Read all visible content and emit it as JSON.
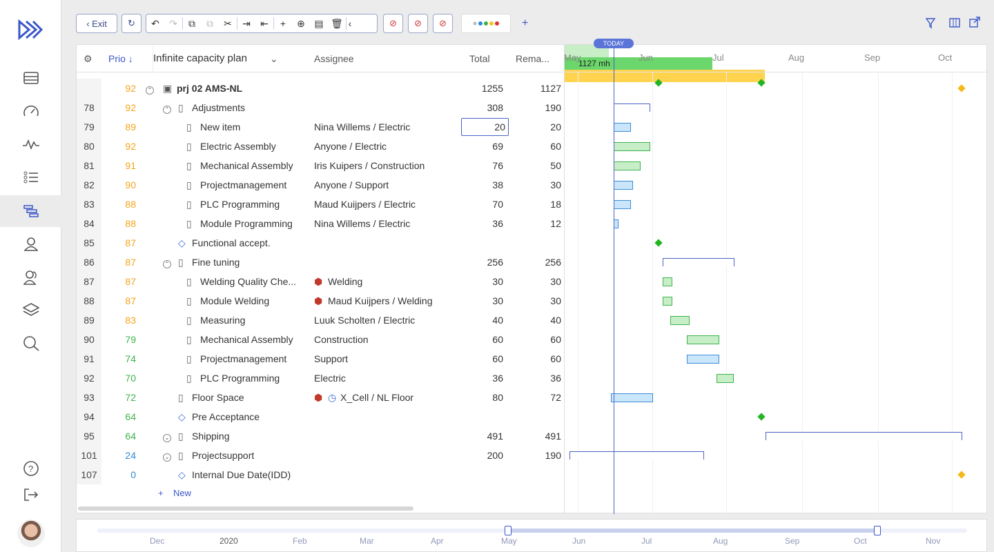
{
  "nav": {
    "exit_label": "Exit",
    "add_label": "+"
  },
  "header": {
    "prio": "Prio",
    "plan": "Infinite capacity plan",
    "assignee": "Assignee",
    "total": "Total",
    "remaining": "Rema..."
  },
  "today_label": "TODAY",
  "months": [
    "May",
    "Jun",
    "Jul",
    "Aug",
    "Sep",
    "Oct"
  ],
  "rows": [
    {
      "id": "",
      "prio": "92",
      "name": "prj 02 AMS-NL",
      "assignee": "",
      "total": "1255",
      "remaining": "1127"
    },
    {
      "id": "78",
      "prio": "92",
      "name": "Adjustments",
      "assignee": "",
      "total": "308",
      "remaining": "190"
    },
    {
      "id": "79",
      "prio": "89",
      "name": "New item",
      "assignee": "Nina Willems / Electric",
      "total": "20",
      "remaining": "20"
    },
    {
      "id": "80",
      "prio": "92",
      "name": "Electric Assembly",
      "assignee": "Anyone / Electric",
      "total": "69",
      "remaining": "60"
    },
    {
      "id": "81",
      "prio": "91",
      "name": "Mechanical Assembly",
      "assignee": "Iris Kuipers / Construction",
      "total": "76",
      "remaining": "50"
    },
    {
      "id": "82",
      "prio": "90",
      "name": "Projectmanagement",
      "assignee": "Anyone / Support",
      "total": "38",
      "remaining": "30"
    },
    {
      "id": "83",
      "prio": "88",
      "name": "PLC Programming",
      "assignee": "Maud Kuijpers / Electric",
      "total": "70",
      "remaining": "18"
    },
    {
      "id": "84",
      "prio": "88",
      "name": "Module Programming",
      "assignee": "Nina Willems / Electric",
      "total": "36",
      "remaining": "12"
    },
    {
      "id": "85",
      "prio": "87",
      "name": "Functional accept.",
      "assignee": "",
      "total": "",
      "remaining": ""
    },
    {
      "id": "86",
      "prio": "87",
      "name": "Fine tuning",
      "assignee": "",
      "total": "256",
      "remaining": "256"
    },
    {
      "id": "87",
      "prio": "87",
      "name": "Welding Quality Che...",
      "assignee": "Welding",
      "total": "30",
      "remaining": "30"
    },
    {
      "id": "88",
      "prio": "87",
      "name": "Module Welding",
      "assignee": "Maud Kuijpers / Welding",
      "total": "30",
      "remaining": "30"
    },
    {
      "id": "89",
      "prio": "83",
      "name": "Measuring",
      "assignee": "Luuk Scholten / Electric",
      "total": "40",
      "remaining": "40"
    },
    {
      "id": "90",
      "prio": "79",
      "name": "Mechanical Assembly",
      "assignee": "Construction",
      "total": "60",
      "remaining": "60"
    },
    {
      "id": "91",
      "prio": "74",
      "name": "Projectmanagement",
      "assignee": "Support",
      "total": "60",
      "remaining": "60"
    },
    {
      "id": "92",
      "prio": "70",
      "name": "PLC Programming",
      "assignee": "Electric",
      "total": "36",
      "remaining": "36"
    },
    {
      "id": "93",
      "prio": "72",
      "name": "Floor Space",
      "assignee": "X_Cell / NL Floor",
      "total": "80",
      "remaining": "72"
    },
    {
      "id": "94",
      "prio": "64",
      "name": "Pre Acceptance",
      "assignee": "",
      "total": "",
      "remaining": ""
    },
    {
      "id": "95",
      "prio": "64",
      "name": "Shipping",
      "assignee": "",
      "total": "491",
      "remaining": "491"
    },
    {
      "id": "101",
      "prio": "24",
      "name": "Projectsupport",
      "assignee": "",
      "total": "200",
      "remaining": "190"
    },
    {
      "id": "107",
      "prio": "0",
      "name": "Internal Due Date(IDD)",
      "assignee": "",
      "total": "",
      "remaining": ""
    }
  ],
  "new_label": "New",
  "project_bar_label": "1127 mh",
  "timeline_labels": [
    "Dec",
    "2020",
    "Feb",
    "Mar",
    "Apr",
    "May",
    "Jun",
    "Jul",
    "Aug",
    "Sep",
    "Oct",
    "Nov"
  ]
}
